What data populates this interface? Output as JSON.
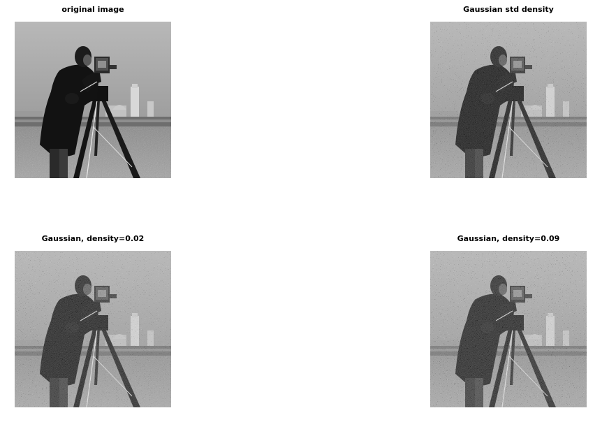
{
  "figure": {
    "panels": [
      {
        "title": "original image",
        "noise": 0
      },
      {
        "title": "Gaussian std density",
        "noise": 0.45
      },
      {
        "title": "Gaussian, density=0.02",
        "noise": 0.55
      },
      {
        "title": "Gaussian, density=0.09",
        "noise": 0.6
      }
    ]
  },
  "colors": {
    "background": "#ffffff",
    "title_text": "#000000"
  }
}
